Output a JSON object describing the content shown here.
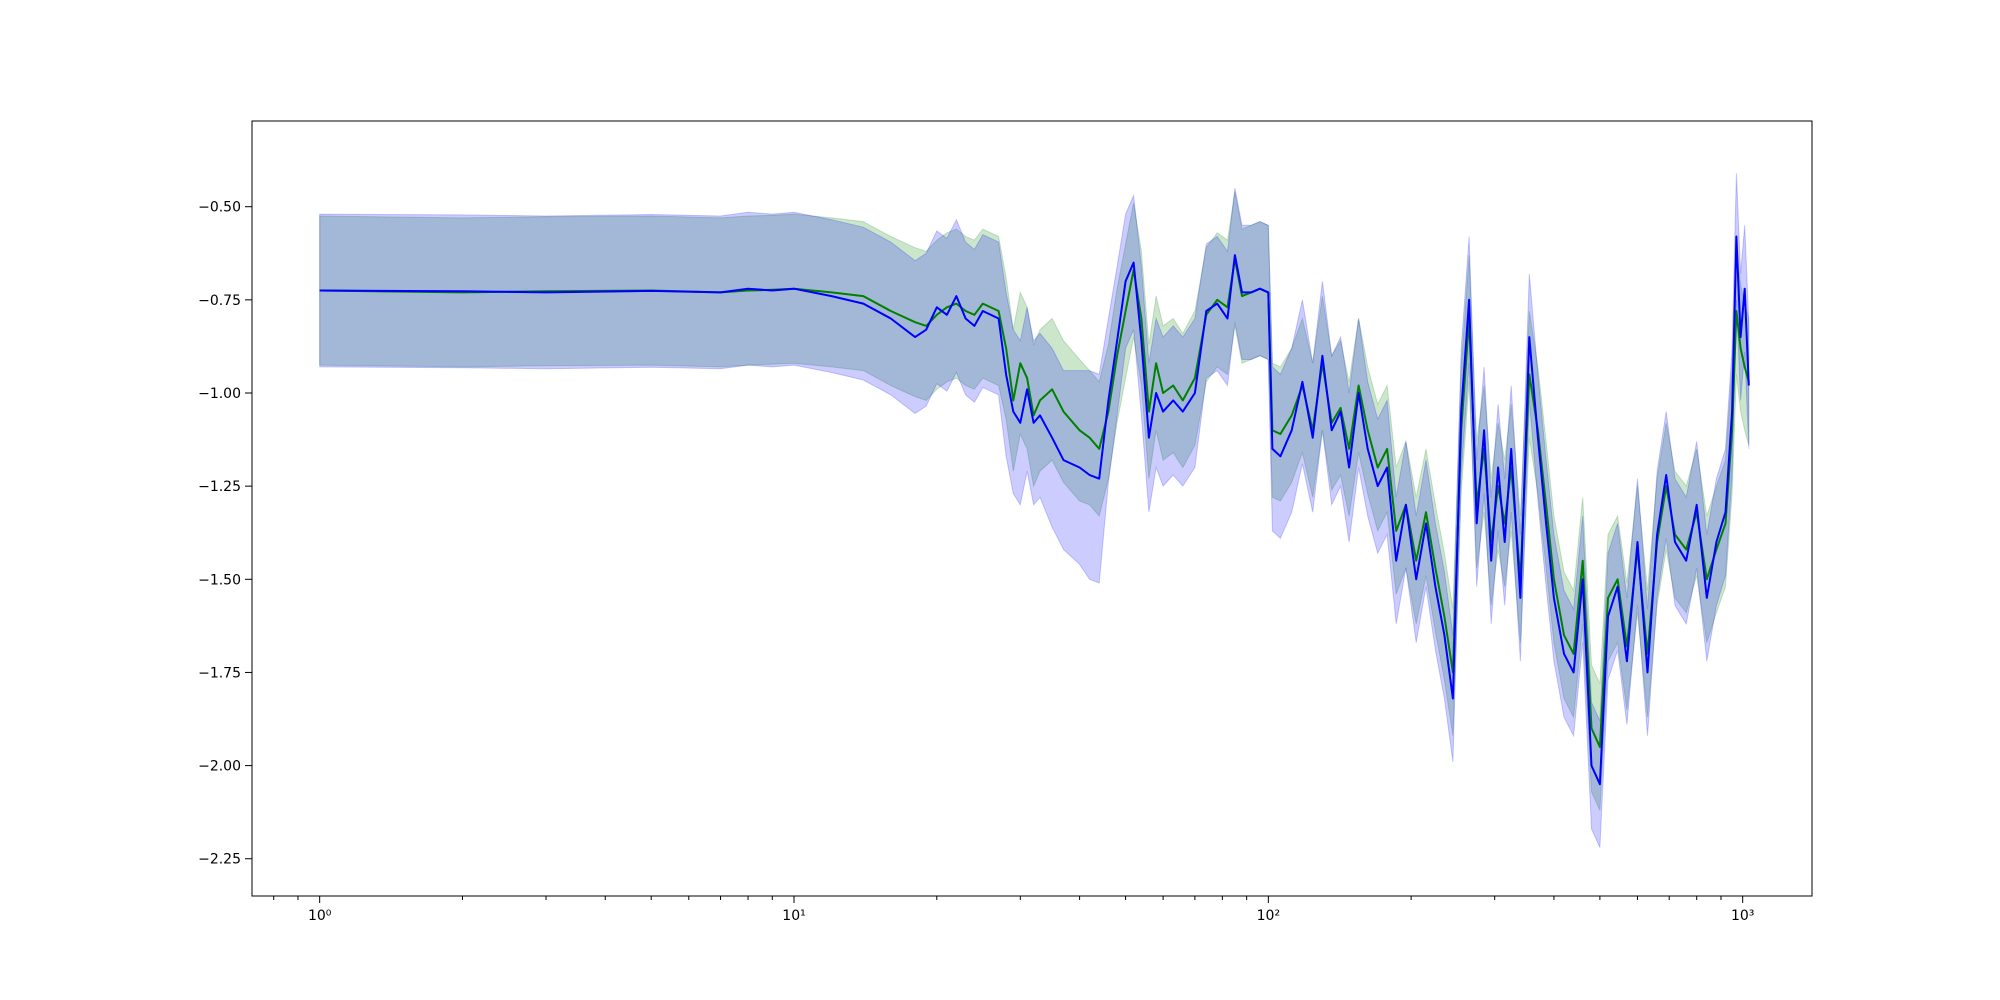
{
  "chart_data": {
    "type": "line",
    "title": "",
    "xlabel": "",
    "ylabel": "",
    "xscale": "log",
    "xlim": [
      0.72,
      1400
    ],
    "ylim": [
      -2.35,
      -0.27
    ],
    "grid": false,
    "legend": "none",
    "x_ticks": [
      {
        "value": 1,
        "label": "10⁰"
      },
      {
        "value": 10,
        "label": "10¹"
      },
      {
        "value": 100,
        "label": "10²"
      },
      {
        "value": 1000,
        "label": "10³"
      }
    ],
    "y_ticks": [
      {
        "value": -0.5,
        "label": "−0.50"
      },
      {
        "value": -0.75,
        "label": "−0.75"
      },
      {
        "value": -1.0,
        "label": "−1.00"
      },
      {
        "value": -1.25,
        "label": "−1.25"
      },
      {
        "value": -1.5,
        "label": "−1.50"
      },
      {
        "value": -1.75,
        "label": "−1.75"
      },
      {
        "value": -2.0,
        "label": "−2.00"
      },
      {
        "value": -2.25,
        "label": "−2.25"
      }
    ],
    "series": [
      {
        "color": "#008000",
        "band_color": "rgba(0,128,0,0.2)",
        "points": [
          [
            1,
            -0.725,
            0.2
          ],
          [
            2,
            -0.73,
            0.2
          ],
          [
            3,
            -0.727,
            0.2
          ],
          [
            5,
            -0.725,
            0.2
          ],
          [
            7,
            -0.73,
            0.2
          ],
          [
            8,
            -0.725,
            0.2
          ],
          [
            9,
            -0.723,
            0.2
          ],
          [
            10,
            -0.72,
            0.2
          ],
          [
            12,
            -0.73,
            0.2
          ],
          [
            14,
            -0.74,
            0.2
          ],
          [
            16,
            -0.78,
            0.2
          ],
          [
            18,
            -0.81,
            0.2
          ],
          [
            19,
            -0.82,
            0.2
          ],
          [
            20,
            -0.79,
            0.2
          ],
          [
            21,
            -0.77,
            0.2
          ],
          [
            22,
            -0.76,
            0.2
          ],
          [
            23,
            -0.78,
            0.2
          ],
          [
            24,
            -0.79,
            0.2
          ],
          [
            25,
            -0.76,
            0.2
          ],
          [
            27,
            -0.78,
            0.2
          ],
          [
            28,
            -0.88,
            0.19
          ],
          [
            29,
            -1.02,
            0.19
          ],
          [
            30,
            -0.92,
            0.19
          ],
          [
            31,
            -0.96,
            0.19
          ],
          [
            32,
            -1.06,
            0.19
          ],
          [
            33,
            -1.02,
            0.19
          ],
          [
            35,
            -0.99,
            0.19
          ],
          [
            37,
            -1.05,
            0.19
          ],
          [
            40,
            -1.1,
            0.19
          ],
          [
            42,
            -1.12,
            0.18
          ],
          [
            44,
            -1.15,
            0.18
          ],
          [
            46,
            -1.05,
            0.18
          ],
          [
            48,
            -0.9,
            0.18
          ],
          [
            50,
            -0.78,
            0.18
          ],
          [
            52,
            -0.67,
            0.18
          ],
          [
            54,
            -0.8,
            0.18
          ],
          [
            56,
            -1.05,
            0.18
          ],
          [
            58,
            -0.92,
            0.18
          ],
          [
            60,
            -1.0,
            0.18
          ],
          [
            63,
            -0.98,
            0.18
          ],
          [
            66,
            -1.02,
            0.18
          ],
          [
            70,
            -0.96,
            0.18
          ],
          [
            74,
            -0.79,
            0.18
          ],
          [
            78,
            -0.75,
            0.18
          ],
          [
            82,
            -0.77,
            0.18
          ],
          [
            85,
            -0.64,
            0.18
          ],
          [
            88,
            -0.74,
            0.18
          ],
          [
            92,
            -0.73,
            0.18
          ],
          [
            96,
            -0.72,
            0.18
          ],
          [
            100,
            -0.73,
            0.18
          ],
          [
            102,
            -1.1,
            0.18
          ],
          [
            106,
            -1.11,
            0.18
          ],
          [
            112,
            -1.06,
            0.18
          ],
          [
            118,
            -0.98,
            0.18
          ],
          [
            124,
            -1.1,
            0.18
          ],
          [
            130,
            -0.92,
            0.18
          ],
          [
            136,
            -1.08,
            0.18
          ],
          [
            142,
            -1.04,
            0.18
          ],
          [
            148,
            -1.15,
            0.18
          ],
          [
            155,
            -0.98,
            0.18
          ],
          [
            162,
            -1.1,
            0.17
          ],
          [
            170,
            -1.2,
            0.17
          ],
          [
            178,
            -1.15,
            0.17
          ],
          [
            186,
            -1.37,
            0.17
          ],
          [
            195,
            -1.3,
            0.17
          ],
          [
            205,
            -1.45,
            0.17
          ],
          [
            215,
            -1.32,
            0.17
          ],
          [
            225,
            -1.47,
            0.17
          ],
          [
            235,
            -1.6,
            0.17
          ],
          [
            245,
            -1.75,
            0.17
          ],
          [
            255,
            -1.1,
            0.17
          ],
          [
            265,
            -0.8,
            0.17
          ],
          [
            275,
            -1.3,
            0.17
          ],
          [
            285,
            -1.15,
            0.17
          ],
          [
            295,
            -1.4,
            0.17
          ],
          [
            305,
            -1.25,
            0.17
          ],
          [
            315,
            -1.35,
            0.17
          ],
          [
            325,
            -1.2,
            0.17
          ],
          [
            340,
            -1.5,
            0.17
          ],
          [
            355,
            -0.95,
            0.17
          ],
          [
            370,
            -1.1,
            0.17
          ],
          [
            385,
            -1.3,
            0.17
          ],
          [
            400,
            -1.5,
            0.17
          ],
          [
            420,
            -1.65,
            0.17
          ],
          [
            440,
            -1.7,
            0.17
          ],
          [
            460,
            -1.45,
            0.17
          ],
          [
            480,
            -1.9,
            0.17
          ],
          [
            500,
            -1.95,
            0.17
          ],
          [
            520,
            -1.55,
            0.17
          ],
          [
            545,
            -1.5,
            0.17
          ],
          [
            570,
            -1.68,
            0.17
          ],
          [
            600,
            -1.42,
            0.17
          ],
          [
            630,
            -1.7,
            0.17
          ],
          [
            660,
            -1.4,
            0.17
          ],
          [
            690,
            -1.25,
            0.17
          ],
          [
            720,
            -1.38,
            0.17
          ],
          [
            760,
            -1.42,
            0.17
          ],
          [
            800,
            -1.32,
            0.17
          ],
          [
            840,
            -1.5,
            0.17
          ],
          [
            880,
            -1.42,
            0.17
          ],
          [
            920,
            -1.35,
            0.17
          ],
          [
            950,
            -1.1,
            0.17
          ],
          [
            970,
            -0.78,
            0.17
          ],
          [
            990,
            -0.88,
            0.17
          ],
          [
            1010,
            -0.93,
            0.17
          ],
          [
            1030,
            -0.97,
            0.17
          ]
        ]
      },
      {
        "color": "#0000ff",
        "band_color": "rgba(0,0,255,0.2)",
        "points": [
          [
            1,
            -0.725,
            0.205
          ],
          [
            2,
            -0.727,
            0.205
          ],
          [
            3,
            -0.73,
            0.205
          ],
          [
            5,
            -0.726,
            0.205
          ],
          [
            7,
            -0.73,
            0.205
          ],
          [
            8,
            -0.72,
            0.205
          ],
          [
            9,
            -0.725,
            0.205
          ],
          [
            10,
            -0.72,
            0.205
          ],
          [
            12,
            -0.74,
            0.205
          ],
          [
            14,
            -0.76,
            0.205
          ],
          [
            16,
            -0.8,
            0.205
          ],
          [
            18,
            -0.85,
            0.205
          ],
          [
            19,
            -0.83,
            0.205
          ],
          [
            20,
            -0.77,
            0.205
          ],
          [
            21,
            -0.79,
            0.205
          ],
          [
            22,
            -0.74,
            0.205
          ],
          [
            23,
            -0.8,
            0.205
          ],
          [
            24,
            -0.82,
            0.205
          ],
          [
            25,
            -0.78,
            0.205
          ],
          [
            27,
            -0.8,
            0.205
          ],
          [
            28,
            -0.95,
            0.22
          ],
          [
            29,
            -1.05,
            0.22
          ],
          [
            30,
            -1.08,
            0.22
          ],
          [
            31,
            -0.99,
            0.22
          ],
          [
            32,
            -1.08,
            0.22
          ],
          [
            33,
            -1.06,
            0.22
          ],
          [
            35,
            -1.12,
            0.24
          ],
          [
            37,
            -1.18,
            0.24
          ],
          [
            40,
            -1.2,
            0.26
          ],
          [
            42,
            -1.22,
            0.28
          ],
          [
            44,
            -1.23,
            0.28
          ],
          [
            46,
            -1.02,
            0.22
          ],
          [
            48,
            -0.86,
            0.2
          ],
          [
            50,
            -0.7,
            0.18
          ],
          [
            52,
            -0.65,
            0.18
          ],
          [
            54,
            -0.86,
            0.2
          ],
          [
            56,
            -1.12,
            0.2
          ],
          [
            58,
            -1.0,
            0.2
          ],
          [
            60,
            -1.05,
            0.2
          ],
          [
            63,
            -1.02,
            0.2
          ],
          [
            66,
            -1.05,
            0.2
          ],
          [
            70,
            -1.0,
            0.2
          ],
          [
            74,
            -0.78,
            0.18
          ],
          [
            78,
            -0.76,
            0.18
          ],
          [
            82,
            -0.8,
            0.18
          ],
          [
            85,
            -0.63,
            0.18
          ],
          [
            88,
            -0.73,
            0.18
          ],
          [
            92,
            -0.73,
            0.18
          ],
          [
            96,
            -0.72,
            0.18
          ],
          [
            100,
            -0.73,
            0.18
          ],
          [
            102,
            -1.15,
            0.22
          ],
          [
            106,
            -1.17,
            0.22
          ],
          [
            112,
            -1.1,
            0.22
          ],
          [
            118,
            -0.97,
            0.22
          ],
          [
            124,
            -1.12,
            0.2
          ],
          [
            130,
            -0.9,
            0.2
          ],
          [
            136,
            -1.1,
            0.2
          ],
          [
            142,
            -1.05,
            0.2
          ],
          [
            148,
            -1.2,
            0.2
          ],
          [
            155,
            -1.0,
            0.2
          ],
          [
            162,
            -1.15,
            0.18
          ],
          [
            170,
            -1.25,
            0.18
          ],
          [
            178,
            -1.2,
            0.18
          ],
          [
            186,
            -1.45,
            0.17
          ],
          [
            195,
            -1.3,
            0.17
          ],
          [
            205,
            -1.5,
            0.17
          ],
          [
            215,
            -1.35,
            0.17
          ],
          [
            225,
            -1.52,
            0.17
          ],
          [
            235,
            -1.65,
            0.17
          ],
          [
            245,
            -1.82,
            0.17
          ],
          [
            255,
            -1.05,
            0.17
          ],
          [
            265,
            -0.75,
            0.17
          ],
          [
            275,
            -1.35,
            0.17
          ],
          [
            285,
            -1.1,
            0.17
          ],
          [
            295,
            -1.45,
            0.17
          ],
          [
            305,
            -1.2,
            0.17
          ],
          [
            315,
            -1.4,
            0.17
          ],
          [
            325,
            -1.15,
            0.17
          ],
          [
            340,
            -1.55,
            0.17
          ],
          [
            355,
            -0.85,
            0.17
          ],
          [
            370,
            -1.12,
            0.17
          ],
          [
            385,
            -1.35,
            0.17
          ],
          [
            400,
            -1.55,
            0.17
          ],
          [
            420,
            -1.7,
            0.17
          ],
          [
            440,
            -1.75,
            0.17
          ],
          [
            460,
            -1.5,
            0.17
          ],
          [
            480,
            -2.0,
            0.17
          ],
          [
            500,
            -2.05,
            0.17
          ],
          [
            520,
            -1.6,
            0.17
          ],
          [
            545,
            -1.52,
            0.17
          ],
          [
            570,
            -1.72,
            0.17
          ],
          [
            600,
            -1.4,
            0.17
          ],
          [
            630,
            -1.75,
            0.17
          ],
          [
            660,
            -1.38,
            0.17
          ],
          [
            690,
            -1.22,
            0.17
          ],
          [
            720,
            -1.4,
            0.17
          ],
          [
            760,
            -1.45,
            0.17
          ],
          [
            800,
            -1.3,
            0.17
          ],
          [
            840,
            -1.55,
            0.17
          ],
          [
            880,
            -1.4,
            0.17
          ],
          [
            920,
            -1.32,
            0.17
          ],
          [
            950,
            -1.05,
            0.17
          ],
          [
            970,
            -0.58,
            0.17
          ],
          [
            990,
            -0.85,
            0.17
          ],
          [
            1010,
            -0.72,
            0.17
          ],
          [
            1030,
            -0.98,
            0.17
          ]
        ]
      }
    ]
  }
}
